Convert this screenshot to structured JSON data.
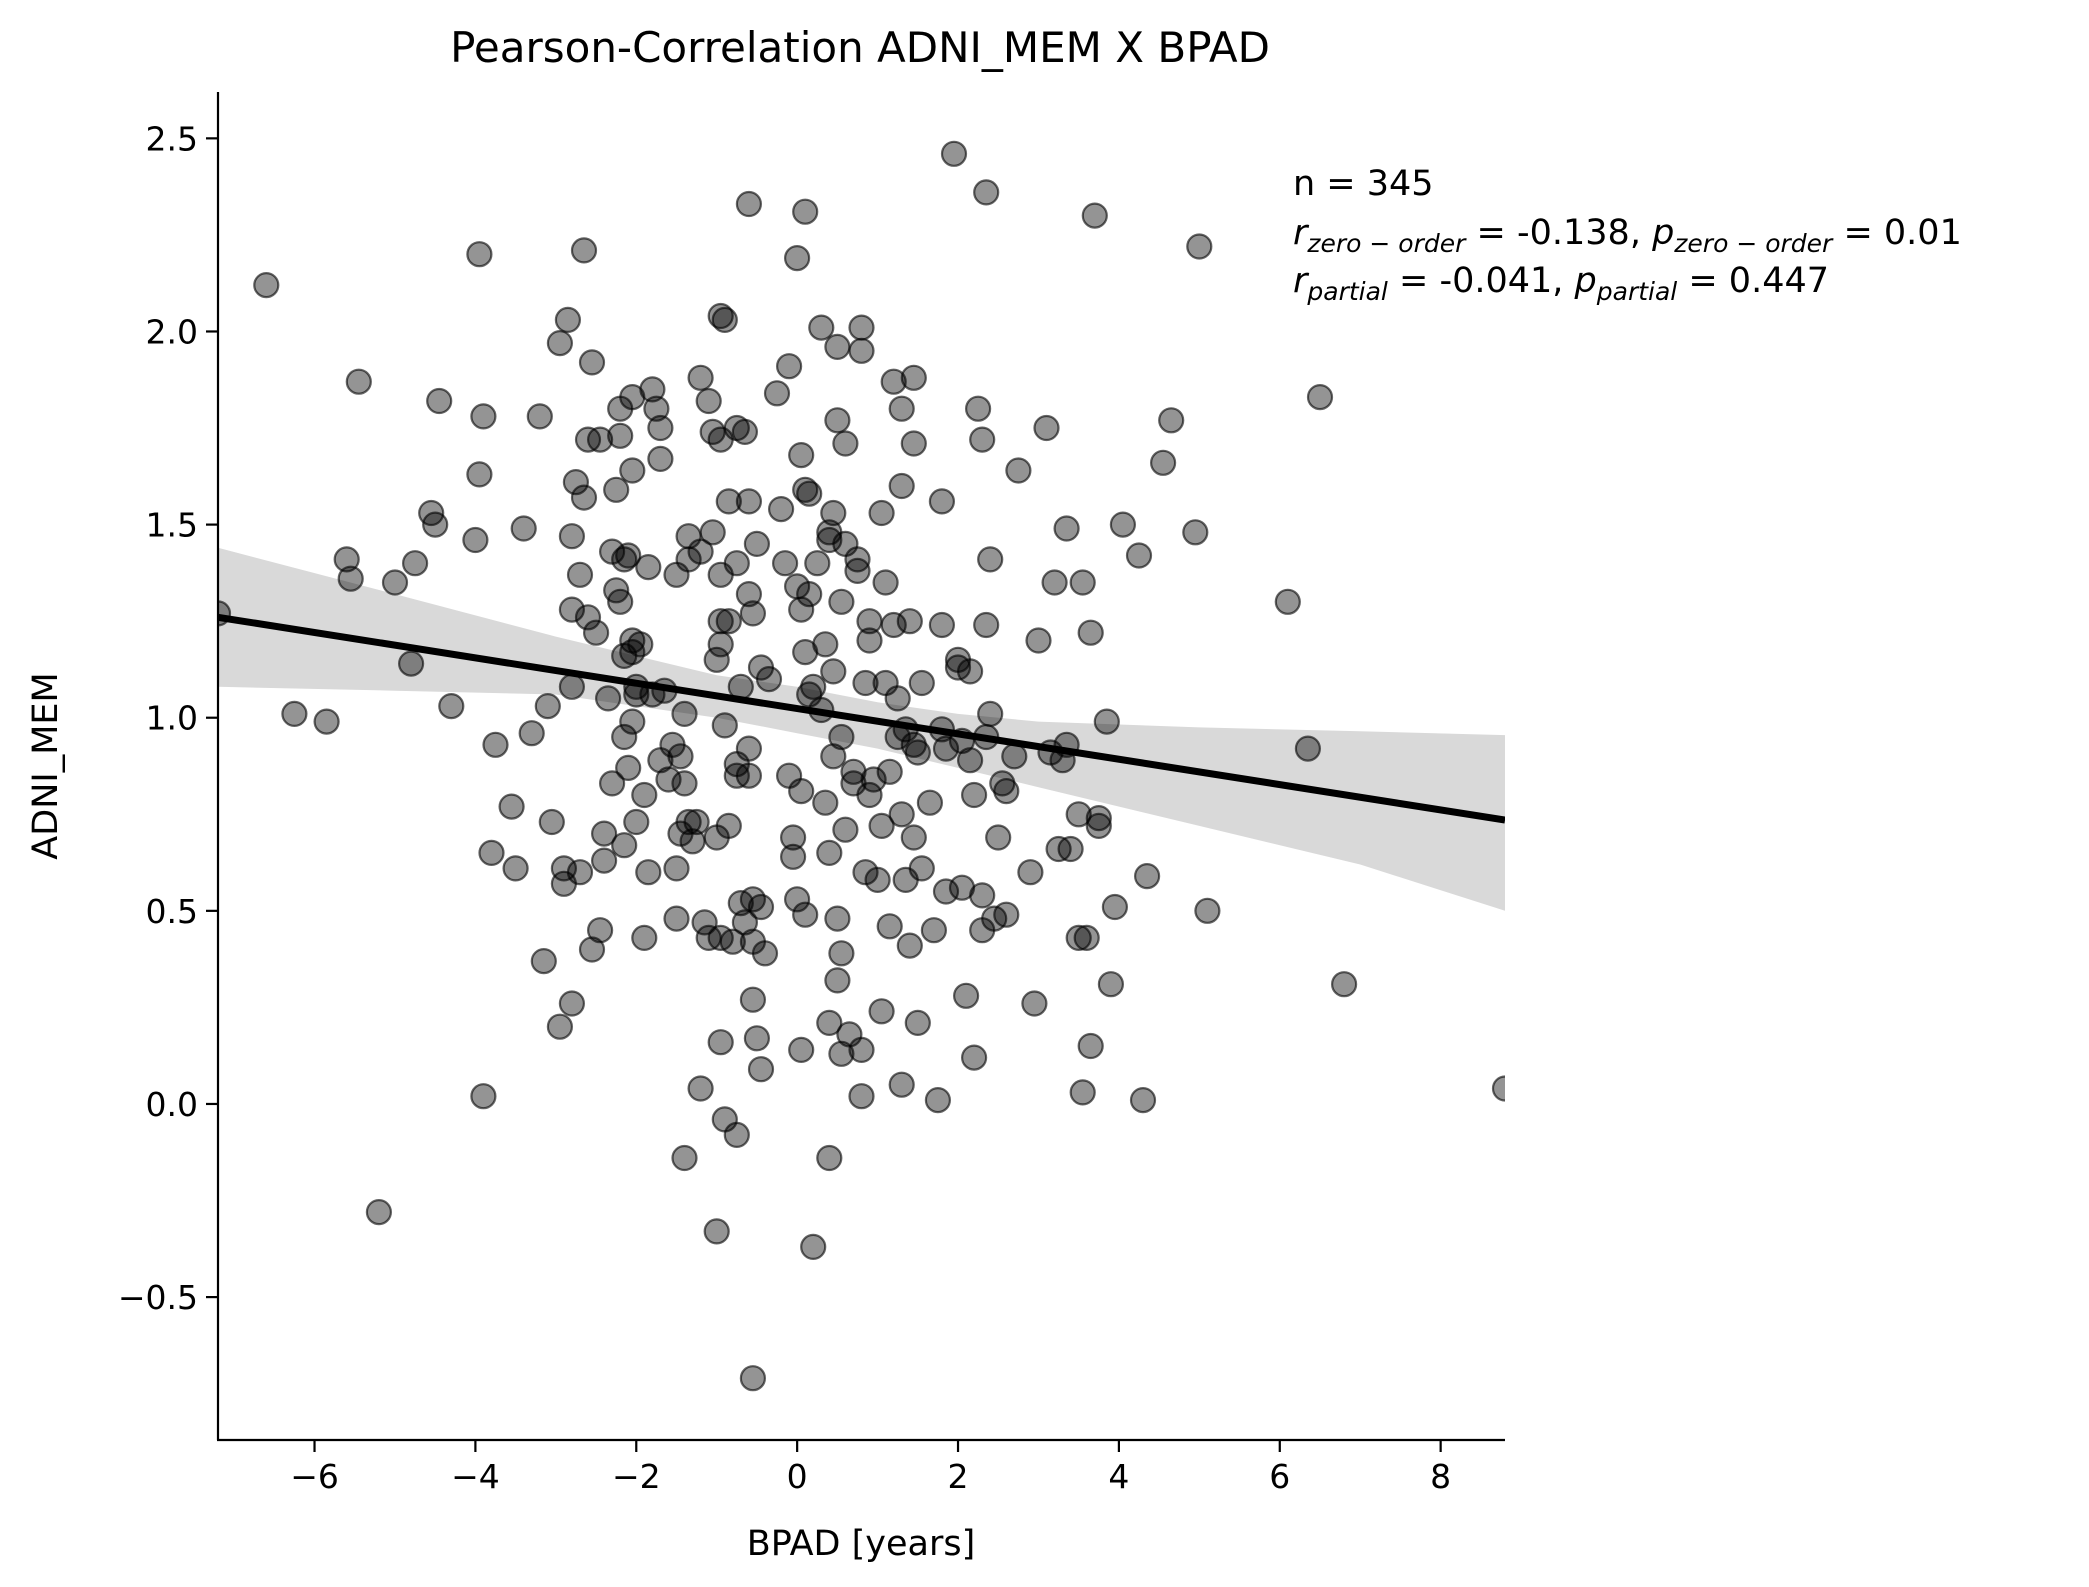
{
  "chart_data": {
    "type": "scatter",
    "title": "Pearson-Correlation ADNI_MEM X BPAD",
    "xlabel": "BPAD [years]",
    "ylabel": "ADNI_MEM",
    "xlim": [
      -7.2,
      8.8
    ],
    "ylim": [
      -0.87,
      2.62
    ],
    "xticks": [
      -6,
      -4,
      -2,
      0,
      2,
      4,
      6,
      8
    ],
    "xtick_labels": [
      "−6",
      "−4",
      "−2",
      "0",
      "2",
      "4",
      "6",
      "8"
    ],
    "yticks": [
      -0.5,
      0.0,
      0.5,
      1.0,
      1.5,
      2.0,
      2.5
    ],
    "ytick_labels": [
      "−0.5",
      "0.0",
      "0.5",
      "1.0",
      "1.5",
      "2.0",
      "2.5"
    ],
    "grid": false,
    "regression_line": {
      "x": [
        -7.2,
        8.8
      ],
      "y": [
        1.26,
        0.735
      ]
    },
    "confidence_band": {
      "x": [
        -7.2,
        -5,
        -3,
        -1,
        0,
        1,
        2,
        3,
        5,
        7,
        8.8
      ],
      "lower": [
        1.08,
        1.07,
        1.06,
        1.0,
        0.96,
        0.92,
        0.87,
        0.82,
        0.72,
        0.62,
        0.5
      ],
      "upper": [
        1.44,
        1.32,
        1.21,
        1.11,
        1.08,
        1.04,
        1.01,
        0.99,
        0.975,
        0.965,
        0.955
      ]
    },
    "point_color": "#000000",
    "point_alpha": 0.42,
    "line_color": "#000000",
    "band_color": "#d9d9d9",
    "annotations": {
      "n": "n = 345",
      "r_zero_sym": "r",
      "r_zero_sub": "zero − order",
      "r_zero_val": " = -0.138, ",
      "p_zero_sym": "p",
      "p_zero_sub": "zero − order",
      "p_zero_val": " = 0.01",
      "r_partial_sym": "r",
      "r_partial_sub": "partial",
      "r_partial_val": " = -0.041, ",
      "p_partial_sym": "p",
      "p_partial_sub": "partial",
      "p_partial_val": " = 0.447"
    },
    "points": [
      [
        -7.2,
        1.27
      ],
      [
        -6.6,
        2.12
      ],
      [
        -6.25,
        1.01
      ],
      [
        -5.85,
        0.99
      ],
      [
        -5.6,
        1.41
      ],
      [
        -5.55,
        1.36
      ],
      [
        -5.45,
        1.87
      ],
      [
        -5.2,
        -0.28
      ],
      [
        -5.0,
        1.35
      ],
      [
        -4.8,
        1.14
      ],
      [
        -4.75,
        1.4
      ],
      [
        -4.55,
        1.53
      ],
      [
        -4.5,
        1.5
      ],
      [
        -4.45,
        1.82
      ],
      [
        -4.3,
        1.03
      ],
      [
        -4.0,
        1.46
      ],
      [
        -3.95,
        1.63
      ],
      [
        -3.95,
        2.2
      ],
      [
        -3.9,
        1.78
      ],
      [
        -3.9,
        0.02
      ],
      [
        -3.8,
        0.65
      ],
      [
        -3.75,
        0.93
      ],
      [
        -3.55,
        0.77
      ],
      [
        -3.5,
        0.61
      ],
      [
        -3.4,
        1.49
      ],
      [
        -3.3,
        0.96
      ],
      [
        -3.2,
        1.78
      ],
      [
        -3.15,
        0.37
      ],
      [
        -3.1,
        1.03
      ],
      [
        -3.05,
        0.73
      ],
      [
        -2.95,
        0.2
      ],
      [
        -2.95,
        1.97
      ],
      [
        -2.9,
        0.61
      ],
      [
        -2.9,
        0.57
      ],
      [
        -2.85,
        2.03
      ],
      [
        -2.8,
        1.47
      ],
      [
        -2.8,
        1.28
      ],
      [
        -2.8,
        1.08
      ],
      [
        -2.8,
        0.26
      ],
      [
        -2.75,
        1.61
      ],
      [
        -2.7,
        1.37
      ],
      [
        -2.7,
        0.6
      ],
      [
        -2.65,
        2.21
      ],
      [
        -2.65,
        1.57
      ],
      [
        -2.6,
        1.72
      ],
      [
        -2.6,
        1.26
      ],
      [
        -2.55,
        1.92
      ],
      [
        -2.55,
        0.4
      ],
      [
        -2.5,
        1.22
      ],
      [
        -2.45,
        1.72
      ],
      [
        -2.45,
        0.45
      ],
      [
        -2.4,
        0.63
      ],
      [
        -2.4,
        0.7
      ],
      [
        -2.35,
        1.05
      ],
      [
        -2.3,
        1.43
      ],
      [
        -2.3,
        0.83
      ],
      [
        -2.25,
        1.59
      ],
      [
        -2.25,
        1.33
      ],
      [
        -2.2,
        1.8
      ],
      [
        -2.2,
        1.73
      ],
      [
        -2.2,
        1.3
      ],
      [
        -2.15,
        1.16
      ],
      [
        -2.15,
        1.41
      ],
      [
        -2.15,
        0.95
      ],
      [
        -2.15,
        0.67
      ],
      [
        -2.1,
        1.42
      ],
      [
        -2.1,
        0.87
      ],
      [
        -2.05,
        1.83
      ],
      [
        -2.05,
        1.64
      ],
      [
        -2.05,
        1.2
      ],
      [
        -2.05,
        1.17
      ],
      [
        -2.05,
        0.99
      ],
      [
        -2.0,
        1.06
      ],
      [
        -2.0,
        1.08
      ],
      [
        -2.0,
        0.73
      ],
      [
        -1.95,
        1.19
      ],
      [
        -1.9,
        0.8
      ],
      [
        -1.9,
        0.43
      ],
      [
        -1.85,
        1.39
      ],
      [
        -1.85,
        0.6
      ],
      [
        -1.8,
        1.85
      ],
      [
        -1.8,
        1.06
      ],
      [
        -1.75,
        1.8
      ],
      [
        -1.7,
        1.75
      ],
      [
        -1.7,
        1.67
      ],
      [
        -1.7,
        0.89
      ],
      [
        -1.65,
        1.07
      ],
      [
        -1.6,
        0.84
      ],
      [
        -1.55,
        0.93
      ],
      [
        -1.5,
        1.37
      ],
      [
        -1.5,
        0.61
      ],
      [
        -1.5,
        0.48
      ],
      [
        -1.45,
        0.7
      ],
      [
        -1.45,
        0.9
      ],
      [
        -1.4,
        1.01
      ],
      [
        -1.4,
        0.83
      ],
      [
        -1.4,
        -0.14
      ],
      [
        -1.35,
        0.73
      ],
      [
        -1.35,
        1.47
      ],
      [
        -1.35,
        1.41
      ],
      [
        -1.3,
        0.68
      ],
      [
        -1.25,
        0.73
      ],
      [
        -1.2,
        1.88
      ],
      [
        -1.2,
        1.43
      ],
      [
        -1.2,
        0.04
      ],
      [
        -1.15,
        0.47
      ],
      [
        -1.1,
        1.82
      ],
      [
        -1.1,
        0.43
      ],
      [
        -1.05,
        1.74
      ],
      [
        -1.05,
        1.48
      ],
      [
        -1.0,
        0.69
      ],
      [
        -1.0,
        1.15
      ],
      [
        -1.0,
        -0.33
      ],
      [
        -0.95,
        2.04
      ],
      [
        -0.95,
        1.72
      ],
      [
        -0.95,
        1.37
      ],
      [
        -0.95,
        1.25
      ],
      [
        -0.95,
        1.19
      ],
      [
        -0.95,
        0.43
      ],
      [
        -0.95,
        0.16
      ],
      [
        -0.9,
        2.03
      ],
      [
        -0.9,
        0.98
      ],
      [
        -0.9,
        -0.04
      ],
      [
        -0.85,
        1.56
      ],
      [
        -0.85,
        1.25
      ],
      [
        -0.85,
        0.72
      ],
      [
        -0.8,
        0.42
      ],
      [
        -0.75,
        1.75
      ],
      [
        -0.75,
        1.4
      ],
      [
        -0.75,
        0.88
      ],
      [
        -0.75,
        0.85
      ],
      [
        -0.75,
        -0.08
      ],
      [
        -0.7,
        1.08
      ],
      [
        -0.7,
        0.52
      ],
      [
        -0.65,
        1.74
      ],
      [
        -0.65,
        0.47
      ],
      [
        -0.6,
        2.33
      ],
      [
        -0.6,
        1.56
      ],
      [
        -0.6,
        1.32
      ],
      [
        -0.6,
        0.92
      ],
      [
        -0.6,
        0.85
      ],
      [
        -0.55,
        1.27
      ],
      [
        -0.55,
        0.53
      ],
      [
        -0.55,
        0.42
      ],
      [
        -0.55,
        0.27
      ],
      [
        -0.55,
        -0.71
      ],
      [
        -0.5,
        1.45
      ],
      [
        -0.5,
        0.17
      ],
      [
        -0.45,
        1.13
      ],
      [
        -0.45,
        0.51
      ],
      [
        -0.45,
        0.09
      ],
      [
        -0.4,
        0.39
      ],
      [
        -0.35,
        1.1
      ],
      [
        -0.25,
        1.84
      ],
      [
        -0.2,
        1.54
      ],
      [
        -0.15,
        1.4
      ],
      [
        -0.1,
        1.91
      ],
      [
        -0.1,
        0.85
      ],
      [
        -0.05,
        0.69
      ],
      [
        -0.05,
        0.64
      ],
      [
        0.0,
        2.19
      ],
      [
        0.0,
        1.34
      ],
      [
        0.0,
        0.53
      ],
      [
        0.05,
        1.68
      ],
      [
        0.05,
        1.28
      ],
      [
        0.05,
        0.81
      ],
      [
        0.05,
        0.14
      ],
      [
        0.1,
        2.31
      ],
      [
        0.1,
        1.59
      ],
      [
        0.1,
        1.17
      ],
      [
        0.1,
        0.49
      ],
      [
        0.15,
        1.58
      ],
      [
        0.15,
        1.32
      ],
      [
        0.15,
        1.06
      ],
      [
        0.2,
        1.08
      ],
      [
        0.2,
        -0.37
      ],
      [
        0.25,
        1.4
      ],
      [
        0.3,
        2.01
      ],
      [
        0.3,
        1.02
      ],
      [
        0.35,
        1.19
      ],
      [
        0.35,
        0.78
      ],
      [
        0.4,
        1.46
      ],
      [
        0.4,
        1.48
      ],
      [
        0.4,
        0.65
      ],
      [
        0.4,
        0.21
      ],
      [
        0.4,
        -0.14
      ],
      [
        0.45,
        1.53
      ],
      [
        0.45,
        1.12
      ],
      [
        0.45,
        0.9
      ],
      [
        0.5,
        1.77
      ],
      [
        0.5,
        1.96
      ],
      [
        0.5,
        0.48
      ],
      [
        0.5,
        0.32
      ],
      [
        0.55,
        1.3
      ],
      [
        0.55,
        0.95
      ],
      [
        0.55,
        0.39
      ],
      [
        0.55,
        0.13
      ],
      [
        0.6,
        1.71
      ],
      [
        0.6,
        1.45
      ],
      [
        0.6,
        0.71
      ],
      [
        0.65,
        0.18
      ],
      [
        0.7,
        0.86
      ],
      [
        0.7,
        0.83
      ],
      [
        0.75,
        1.41
      ],
      [
        0.75,
        1.38
      ],
      [
        0.8,
        2.01
      ],
      [
        0.8,
        1.95
      ],
      [
        0.8,
        0.02
      ],
      [
        0.8,
        0.14
      ],
      [
        0.85,
        1.09
      ],
      [
        0.85,
        0.6
      ],
      [
        0.9,
        1.25
      ],
      [
        0.9,
        1.2
      ],
      [
        0.9,
        0.8
      ],
      [
        0.95,
        0.84
      ],
      [
        1.0,
        0.58
      ],
      [
        1.05,
        1.53
      ],
      [
        1.05,
        0.72
      ],
      [
        1.05,
        0.24
      ],
      [
        1.1,
        1.35
      ],
      [
        1.1,
        1.09
      ],
      [
        1.15,
        0.46
      ],
      [
        1.15,
        0.86
      ],
      [
        1.2,
        1.87
      ],
      [
        1.2,
        1.24
      ],
      [
        1.25,
        1.05
      ],
      [
        1.25,
        0.95
      ],
      [
        1.3,
        1.8
      ],
      [
        1.3,
        1.6
      ],
      [
        1.3,
        0.75
      ],
      [
        1.3,
        0.05
      ],
      [
        1.35,
        0.97
      ],
      [
        1.35,
        0.58
      ],
      [
        1.4,
        1.25
      ],
      [
        1.4,
        0.41
      ],
      [
        1.45,
        1.88
      ],
      [
        1.45,
        1.71
      ],
      [
        1.45,
        0.93
      ],
      [
        1.45,
        0.69
      ],
      [
        1.5,
        0.91
      ],
      [
        1.5,
        0.21
      ],
      [
        1.55,
        1.09
      ],
      [
        1.55,
        0.61
      ],
      [
        1.65,
        0.78
      ],
      [
        1.7,
        0.45
      ],
      [
        1.75,
        0.01
      ],
      [
        1.8,
        1.56
      ],
      [
        1.8,
        1.24
      ],
      [
        1.8,
        0.97
      ],
      [
        1.85,
        0.92
      ],
      [
        1.85,
        0.55
      ],
      [
        1.95,
        2.46
      ],
      [
        2.0,
        1.15
      ],
      [
        2.0,
        1.13
      ],
      [
        2.05,
        0.94
      ],
      [
        2.05,
        0.56
      ],
      [
        2.1,
        0.28
      ],
      [
        2.15,
        1.12
      ],
      [
        2.15,
        0.89
      ],
      [
        2.2,
        0.8
      ],
      [
        2.2,
        0.12
      ],
      [
        2.25,
        1.8
      ],
      [
        2.3,
        1.72
      ],
      [
        2.3,
        0.54
      ],
      [
        2.3,
        0.45
      ],
      [
        2.35,
        2.36
      ],
      [
        2.35,
        1.24
      ],
      [
        2.35,
        0.95
      ],
      [
        2.4,
        1.41
      ],
      [
        2.4,
        1.01
      ],
      [
        2.45,
        0.48
      ],
      [
        2.5,
        0.69
      ],
      [
        2.55,
        0.83
      ],
      [
        2.6,
        0.49
      ],
      [
        2.6,
        0.81
      ],
      [
        2.7,
        0.9
      ],
      [
        2.75,
        1.64
      ],
      [
        2.9,
        0.6
      ],
      [
        2.95,
        0.26
      ],
      [
        3.0,
        1.2
      ],
      [
        3.1,
        1.75
      ],
      [
        3.15,
        0.91
      ],
      [
        3.2,
        1.35
      ],
      [
        3.25,
        0.66
      ],
      [
        3.3,
        0.89
      ],
      [
        3.35,
        1.49
      ],
      [
        3.35,
        0.93
      ],
      [
        3.4,
        0.66
      ],
      [
        3.5,
        0.43
      ],
      [
        3.5,
        0.75
      ],
      [
        3.55,
        1.35
      ],
      [
        3.55,
        0.03
      ],
      [
        3.6,
        0.43
      ],
      [
        3.65,
        1.22
      ],
      [
        3.65,
        0.15
      ],
      [
        3.7,
        2.3
      ],
      [
        3.75,
        0.74
      ],
      [
        3.75,
        0.72
      ],
      [
        3.85,
        0.99
      ],
      [
        3.9,
        0.31
      ],
      [
        3.95,
        0.51
      ],
      [
        4.05,
        1.5
      ],
      [
        4.25,
        1.42
      ],
      [
        4.3,
        0.01
      ],
      [
        4.35,
        0.59
      ],
      [
        4.55,
        1.66
      ],
      [
        4.65,
        1.77
      ],
      [
        4.95,
        1.48
      ],
      [
        5.0,
        2.22
      ],
      [
        5.1,
        0.5
      ],
      [
        6.1,
        1.3
      ],
      [
        6.35,
        0.92
      ],
      [
        6.5,
        1.83
      ],
      [
        6.8,
        0.31
      ],
      [
        8.8,
        0.04
      ]
    ]
  }
}
